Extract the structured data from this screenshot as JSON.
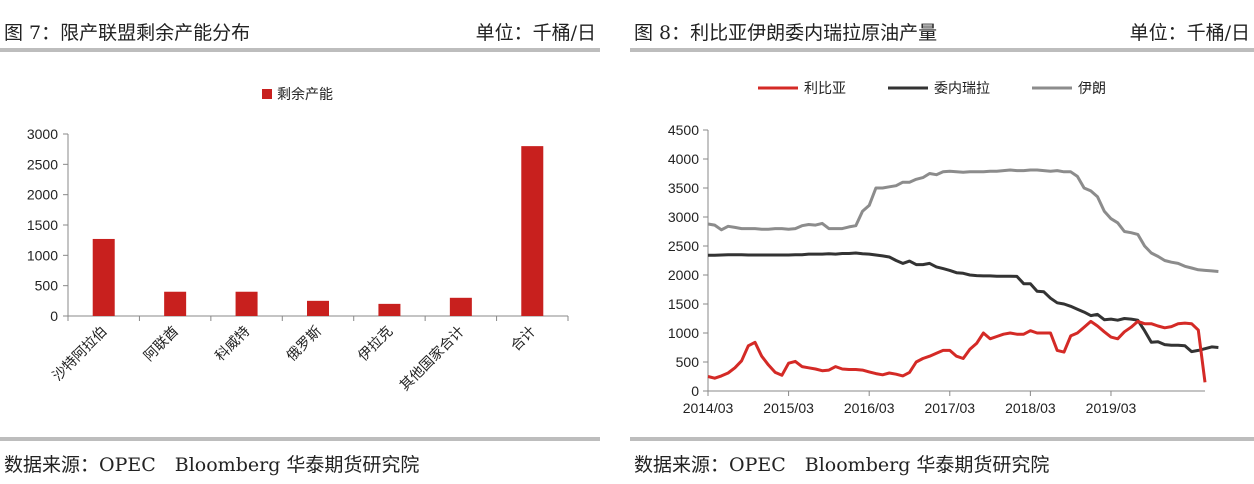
{
  "left": {
    "header_title": "图 7：限产联盟剩余产能分布",
    "header_unit": "单位：千桶/日",
    "source": "数据来源：OPEC　Bloomberg 华泰期货研究院"
  },
  "right": {
    "header_title": "图 8：利比亚伊朗委内瑞拉原油产量",
    "header_unit": "单位：千桶/日",
    "source": "数据来源：OPEC　Bloomberg 华泰期货研究院"
  },
  "colors": {
    "bar": "#c8201e",
    "libya": "#d42a26",
    "venezuela": "#333333",
    "iran": "#8c8c8c",
    "rule": "#bdbdbd"
  },
  "chart_data": [
    {
      "type": "bar",
      "legend_position": "top",
      "categories": [
        "沙特阿拉伯",
        "阿联酋",
        "科威特",
        "俄罗斯",
        "伊拉克",
        "其他国家合计",
        "合计"
      ],
      "series": [
        {
          "name": "剩余产能",
          "values": [
            1270,
            400,
            400,
            250,
            200,
            300,
            2800
          ]
        }
      ],
      "ylim": [
        0,
        3000
      ],
      "yticks": [
        0,
        500,
        1000,
        1500,
        2000,
        2500,
        3000
      ],
      "grid": false
    },
    {
      "type": "line",
      "legend_position": "top",
      "x_start": "2014/03",
      "x_step": "month",
      "xticks": [
        "2014/03",
        "2015/03",
        "2016/03",
        "2017/03",
        "2018/03",
        "2019/03"
      ],
      "ylim": [
        0,
        4500
      ],
      "yticks": [
        0,
        500,
        1000,
        1500,
        2000,
        2500,
        3000,
        3500,
        4000,
        4500
      ],
      "grid": false,
      "series": [
        {
          "name": "利比亚",
          "values": [
            250,
            220,
            260,
            310,
            400,
            520,
            780,
            840,
            600,
            450,
            320,
            270,
            480,
            510,
            420,
            400,
            380,
            350,
            360,
            420,
            380,
            370,
            370,
            360,
            330,
            300,
            280,
            310,
            290,
            260,
            320,
            500,
            560,
            600,
            650,
            700,
            700,
            600,
            560,
            720,
            820,
            1000,
            900,
            940,
            980,
            1000,
            980,
            980,
            1040,
            1000,
            1000,
            1000,
            700,
            670,
            950,
            1000,
            1100,
            1200,
            1120,
            1020,
            930,
            900,
            1020,
            1100,
            1200,
            1160,
            1160,
            1120,
            1090,
            1110,
            1160,
            1170,
            1160,
            1050,
            150
          ]
        },
        {
          "name": "委内瑞拉",
          "values": [
            2340,
            2340,
            2345,
            2350,
            2350,
            2350,
            2345,
            2345,
            2345,
            2345,
            2345,
            2345,
            2345,
            2350,
            2350,
            2360,
            2360,
            2360,
            2365,
            2360,
            2370,
            2370,
            2380,
            2365,
            2360,
            2345,
            2330,
            2310,
            2250,
            2200,
            2240,
            2180,
            2180,
            2200,
            2140,
            2110,
            2080,
            2040,
            2030,
            2000,
            1990,
            1985,
            1985,
            1980,
            1980,
            1980,
            1975,
            1850,
            1850,
            1720,
            1710,
            1600,
            1520,
            1500,
            1460,
            1410,
            1360,
            1300,
            1320,
            1230,
            1240,
            1220,
            1250,
            1240,
            1220,
            1040,
            840,
            850,
            800,
            790,
            790,
            780,
            680,
            700,
            730,
            760,
            750
          ]
        },
        {
          "name": "伊朗",
          "values": [
            2880,
            2860,
            2780,
            2840,
            2820,
            2800,
            2800,
            2800,
            2790,
            2790,
            2800,
            2800,
            2790,
            2800,
            2850,
            2870,
            2860,
            2890,
            2800,
            2800,
            2800,
            2830,
            2850,
            3100,
            3200,
            3500,
            3500,
            3520,
            3540,
            3600,
            3600,
            3650,
            3680,
            3750,
            3730,
            3780,
            3790,
            3780,
            3770,
            3780,
            3780,
            3780,
            3790,
            3790,
            3800,
            3810,
            3800,
            3800,
            3810,
            3810,
            3800,
            3790,
            3800,
            3780,
            3780,
            3700,
            3500,
            3450,
            3350,
            3100,
            2970,
            2900,
            2750,
            2730,
            2700,
            2500,
            2380,
            2320,
            2250,
            2220,
            2200,
            2150,
            2120,
            2090,
            2080,
            2070,
            2060
          ]
        }
      ]
    }
  ]
}
